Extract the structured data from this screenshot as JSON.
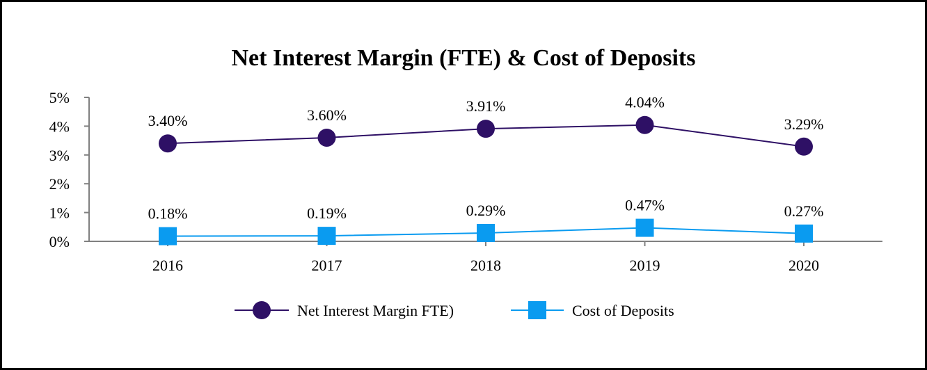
{
  "chart_data": {
    "type": "line",
    "title": "Net Interest Margin (FTE) & Cost of Deposits",
    "xlabel": "",
    "ylabel": "",
    "categories": [
      "2016",
      "2017",
      "2018",
      "2019",
      "2020"
    ],
    "ylim": [
      0,
      5
    ],
    "y_ticks": [
      "0%",
      "1%",
      "2%",
      "3%",
      "4%",
      "5%"
    ],
    "grid": false,
    "legend_position": "bottom",
    "series": [
      {
        "name": "Net Interest Margin FTE)",
        "values": [
          3.4,
          3.6,
          3.91,
          4.04,
          3.29
        ],
        "labels": [
          "3.40%",
          "3.60%",
          "3.91%",
          "4.04%",
          "3.29%"
        ],
        "color": "#2e1065",
        "marker": "circle"
      },
      {
        "name": "Cost of Deposits",
        "values": [
          0.18,
          0.19,
          0.29,
          0.47,
          0.27
        ],
        "labels": [
          "0.18%",
          "0.19%",
          "0.29%",
          "0.47%",
          "0.27%"
        ],
        "color": "#0a9bf0",
        "marker": "square"
      }
    ]
  }
}
